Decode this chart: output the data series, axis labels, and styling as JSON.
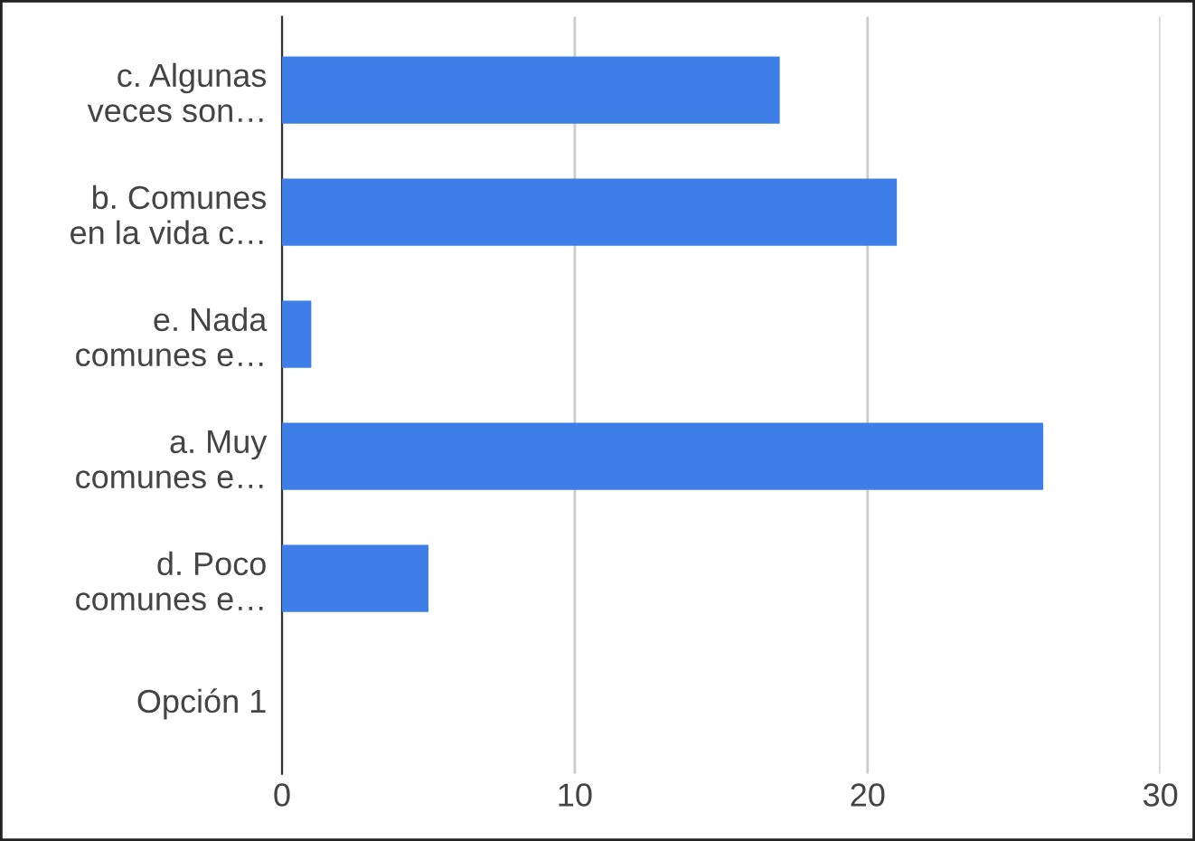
{
  "chart_data": {
    "type": "bar",
    "orientation": "horizontal",
    "categories": [
      "c. Algunas\nveces son…",
      "b. Comunes\nen la vida c…",
      "e. Nada\ncomunes e…",
      "a. Muy\ncomunes e…",
      "d. Poco\ncomunes e…",
      "Opción 1"
    ],
    "values": [
      17,
      21,
      1,
      26,
      5,
      null
    ],
    "color": "#3d7ee8",
    "xlim": [
      0,
      30
    ],
    "xticks": [
      0,
      10,
      20,
      30
    ],
    "grid": "x",
    "legend": false
  }
}
